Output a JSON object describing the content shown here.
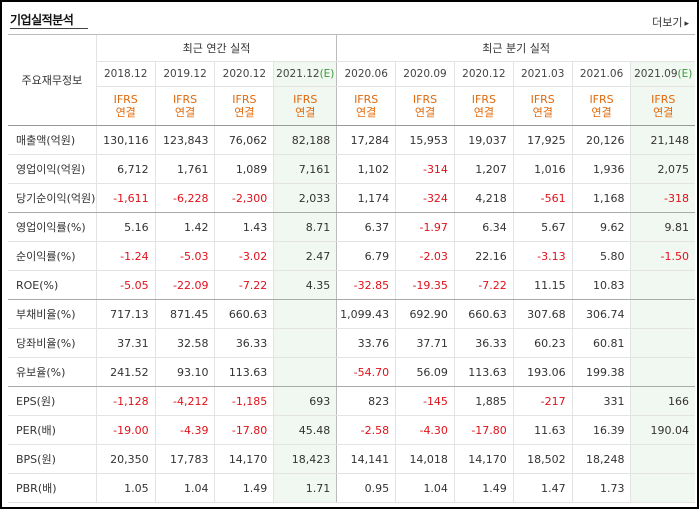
{
  "header": {
    "title": "기업실적분석",
    "more_label": "더보기",
    "more_arrow": "▸"
  },
  "table": {
    "row_header_label": "주요재무정보",
    "groups": [
      "최근 연간 실적",
      "최근 분기 실적"
    ],
    "periods": [
      "2018.12",
      "2019.12",
      "2020.12",
      "2021.12",
      "2020.06",
      "2020.09",
      "2020.12",
      "2021.03",
      "2021.06",
      "2021.09"
    ],
    "estimate_mark": "(E)",
    "standard_line1": "IFRS",
    "standard_line2": "연결",
    "rows": [
      {
        "label": "매출액(억원)",
        "values": [
          "130,116",
          "123,843",
          "76,062",
          "82,188",
          "17,284",
          "15,953",
          "19,037",
          "17,925",
          "20,126",
          "21,148"
        ]
      },
      {
        "label": "영업이익(억원)",
        "values": [
          "6,712",
          "1,761",
          "1,089",
          "7,161",
          "1,102",
          "-314",
          "1,207",
          "1,016",
          "1,936",
          "2,075"
        ]
      },
      {
        "label": "당기순이익(억원)",
        "values": [
          "-1,611",
          "-6,228",
          "-2,300",
          "2,033",
          "1,174",
          "-324",
          "4,218",
          "-561",
          "1,168",
          "-318"
        ]
      },
      {
        "label": "영업이익률(%)",
        "values": [
          "5.16",
          "1.42",
          "1.43",
          "8.71",
          "6.37",
          "-1.97",
          "6.34",
          "5.67",
          "9.62",
          "9.81"
        ]
      },
      {
        "label": "순이익률(%)",
        "values": [
          "-1.24",
          "-5.03",
          "-3.02",
          "2.47",
          "6.79",
          "-2.03",
          "22.16",
          "-3.13",
          "5.80",
          "-1.50"
        ]
      },
      {
        "label": "ROE(%)",
        "values": [
          "-5.05",
          "-22.09",
          "-7.22",
          "4.35",
          "-32.85",
          "-19.35",
          "-7.22",
          "11.15",
          "10.83",
          ""
        ]
      },
      {
        "label": "부채비율(%)",
        "values": [
          "717.13",
          "871.45",
          "660.63",
          "",
          "1,099.43",
          "692.90",
          "660.63",
          "307.68",
          "306.74",
          ""
        ]
      },
      {
        "label": "당좌비율(%)",
        "values": [
          "37.31",
          "32.58",
          "36.33",
          "",
          "33.76",
          "37.71",
          "36.33",
          "60.23",
          "60.81",
          ""
        ]
      },
      {
        "label": "유보율(%)",
        "values": [
          "241.52",
          "93.10",
          "113.63",
          "",
          "-54.70",
          "56.09",
          "113.63",
          "193.06",
          "199.38",
          ""
        ]
      },
      {
        "label": "EPS(원)",
        "values": [
          "-1,128",
          "-4,212",
          "-1,185",
          "693",
          "823",
          "-145",
          "1,885",
          "-217",
          "331",
          "166"
        ]
      },
      {
        "label": "PER(배)",
        "values": [
          "-19.00",
          "-4.39",
          "-17.80",
          "45.48",
          "-2.58",
          "-4.30",
          "-17.80",
          "11.63",
          "16.39",
          "190.04"
        ]
      },
      {
        "label": "BPS(원)",
        "values": [
          "20,350",
          "17,783",
          "14,170",
          "18,423",
          "14,141",
          "14,018",
          "14,170",
          "18,502",
          "18,248",
          ""
        ]
      },
      {
        "label": "PBR(배)",
        "values": [
          "1.05",
          "1.04",
          "1.49",
          "1.71",
          "0.95",
          "1.04",
          "1.49",
          "1.47",
          "1.73",
          ""
        ]
      }
    ]
  },
  "colors": {
    "negative": "#e0111a",
    "accounting_standard": "#e2690b",
    "estimate_bg": "#f1f7f1",
    "estimate_mark": "#3a9a3a"
  }
}
